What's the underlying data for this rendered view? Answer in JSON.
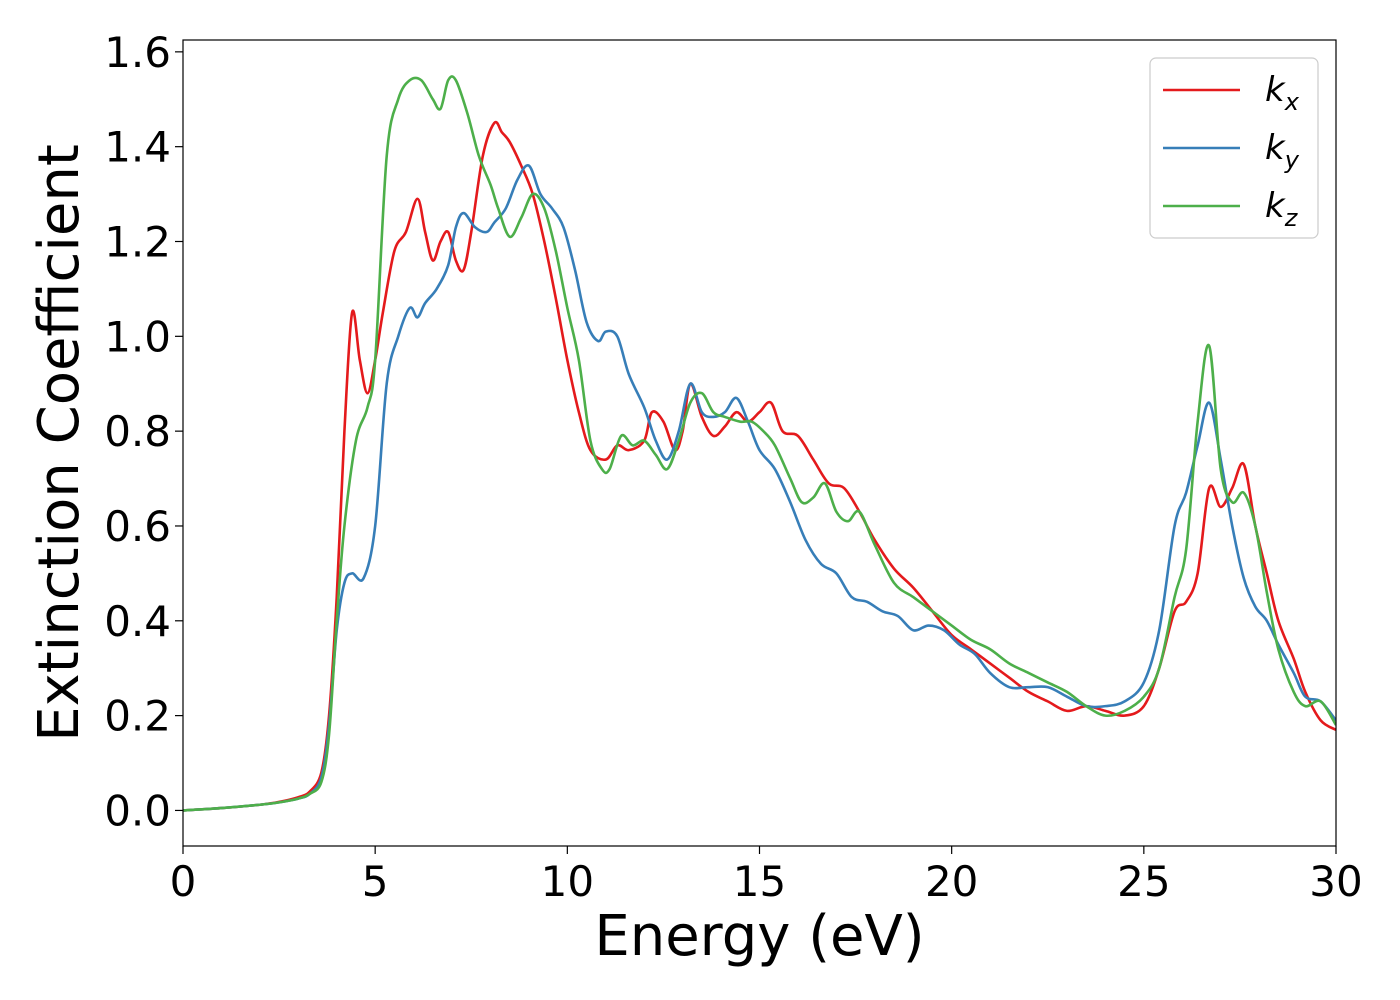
{
  "chart_data": {
    "type": "line",
    "xlabel": "Energy (eV)",
    "ylabel": "Extinction Coefficient",
    "xlim": [
      0,
      30
    ],
    "ylim": [
      -0.075,
      1.625
    ],
    "x_ticks": [
      "0",
      "5",
      "10",
      "15",
      "20",
      "25",
      "30"
    ],
    "y_ticks": [
      "0.0",
      "0.2",
      "0.4",
      "0.6",
      "0.8",
      "1.0",
      "1.2",
      "1.4",
      "1.6"
    ],
    "grid": false,
    "legend_position": "top-right",
    "series": [
      {
        "name": "kx",
        "legend_base": "k",
        "legend_sub": "x",
        "color": "#e41a1c",
        "x": [
          0,
          1,
          2,
          2.5,
          3,
          3.3,
          3.6,
          3.8,
          4.0,
          4.2,
          4.4,
          4.6,
          4.8,
          5.0,
          5.2,
          5.5,
          5.8,
          6.1,
          6.3,
          6.5,
          6.7,
          6.9,
          7.1,
          7.3,
          7.5,
          7.8,
          8.1,
          8.3,
          8.5,
          8.8,
          9.1,
          9.4,
          9.7,
          10.0,
          10.3,
          10.6,
          11.0,
          11.3,
          11.6,
          12.0,
          12.2,
          12.5,
          12.8,
          13.0,
          13.2,
          13.5,
          13.8,
          14.1,
          14.4,
          14.7,
          15.0,
          15.3,
          15.6,
          16.0,
          16.4,
          16.8,
          17.2,
          17.6,
          18.0,
          18.5,
          19.0,
          19.5,
          20.0,
          20.5,
          21.0,
          21.5,
          22.0,
          22.5,
          23.0,
          23.5,
          24.0,
          24.5,
          25.0,
          25.4,
          25.8,
          26.1,
          26.4,
          26.7,
          27.0,
          27.3,
          27.6,
          27.9,
          28.2,
          28.5,
          28.9,
          29.2,
          29.6,
          30.0
        ],
        "y": [
          0.0,
          0.005,
          0.012,
          0.018,
          0.028,
          0.04,
          0.08,
          0.2,
          0.45,
          0.8,
          1.05,
          0.95,
          0.88,
          0.95,
          1.05,
          1.18,
          1.22,
          1.29,
          1.22,
          1.16,
          1.2,
          1.22,
          1.16,
          1.14,
          1.22,
          1.38,
          1.45,
          1.43,
          1.41,
          1.36,
          1.3,
          1.2,
          1.08,
          0.95,
          0.84,
          0.76,
          0.74,
          0.77,
          0.76,
          0.78,
          0.84,
          0.82,
          0.76,
          0.8,
          0.9,
          0.83,
          0.79,
          0.81,
          0.84,
          0.82,
          0.84,
          0.86,
          0.8,
          0.79,
          0.74,
          0.69,
          0.68,
          0.63,
          0.57,
          0.51,
          0.47,
          0.42,
          0.37,
          0.34,
          0.31,
          0.28,
          0.25,
          0.23,
          0.21,
          0.22,
          0.21,
          0.2,
          0.22,
          0.3,
          0.42,
          0.44,
          0.5,
          0.68,
          0.64,
          0.68,
          0.73,
          0.6,
          0.5,
          0.4,
          0.32,
          0.25,
          0.19,
          0.17
        ]
      },
      {
        "name": "ky",
        "legend_base": "k",
        "legend_sub": "y",
        "color": "#377eb8",
        "x": [
          0,
          1,
          2,
          2.5,
          3,
          3.3,
          3.6,
          3.8,
          4.0,
          4.2,
          4.4,
          4.7,
          5.0,
          5.3,
          5.6,
          5.9,
          6.1,
          6.3,
          6.6,
          6.9,
          7.1,
          7.3,
          7.6,
          7.9,
          8.1,
          8.4,
          8.7,
          9.0,
          9.3,
          9.6,
          9.9,
          10.2,
          10.5,
          10.8,
          11.0,
          11.3,
          11.6,
          12.0,
          12.3,
          12.6,
          12.9,
          13.2,
          13.5,
          13.8,
          14.1,
          14.4,
          14.7,
          15.0,
          15.4,
          15.8,
          16.2,
          16.6,
          17.0,
          17.4,
          17.8,
          18.2,
          18.6,
          19.0,
          19.4,
          19.8,
          20.2,
          20.6,
          21.0,
          21.5,
          22.0,
          22.5,
          23.0,
          23.5,
          24.0,
          24.5,
          25.0,
          25.4,
          25.8,
          26.1,
          26.4,
          26.7,
          27.0,
          27.3,
          27.6,
          27.9,
          28.2,
          28.5,
          28.9,
          29.2,
          29.6,
          30.0
        ],
        "y": [
          0.0,
          0.005,
          0.012,
          0.017,
          0.025,
          0.035,
          0.07,
          0.18,
          0.38,
          0.48,
          0.5,
          0.49,
          0.6,
          0.9,
          1.0,
          1.06,
          1.04,
          1.07,
          1.1,
          1.15,
          1.23,
          1.26,
          1.23,
          1.22,
          1.24,
          1.27,
          1.33,
          1.36,
          1.3,
          1.27,
          1.23,
          1.14,
          1.03,
          0.99,
          1.01,
          1.0,
          0.92,
          0.85,
          0.78,
          0.74,
          0.8,
          0.9,
          0.84,
          0.83,
          0.84,
          0.87,
          0.82,
          0.76,
          0.72,
          0.65,
          0.57,
          0.52,
          0.5,
          0.45,
          0.44,
          0.42,
          0.41,
          0.38,
          0.39,
          0.38,
          0.35,
          0.33,
          0.29,
          0.26,
          0.26,
          0.26,
          0.24,
          0.22,
          0.22,
          0.23,
          0.27,
          0.38,
          0.6,
          0.67,
          0.77,
          0.86,
          0.74,
          0.6,
          0.49,
          0.43,
          0.4,
          0.35,
          0.29,
          0.24,
          0.23,
          0.19
        ]
      },
      {
        "name": "kz",
        "legend_base": "k",
        "legend_sub": "z",
        "color": "#4daf4a",
        "x": [
          0,
          1,
          2,
          2.5,
          3,
          3.3,
          3.6,
          3.8,
          4.0,
          4.2,
          4.5,
          4.8,
          5.0,
          5.3,
          5.6,
          5.9,
          6.2,
          6.5,
          6.7,
          6.9,
          7.1,
          7.4,
          7.7,
          8.0,
          8.2,
          8.5,
          8.8,
          9.1,
          9.4,
          9.7,
          10.0,
          10.3,
          10.6,
          10.9,
          11.1,
          11.4,
          11.7,
          12.0,
          12.3,
          12.6,
          12.9,
          13.2,
          13.5,
          13.8,
          14.1,
          14.5,
          14.8,
          15.1,
          15.4,
          15.8,
          16.1,
          16.4,
          16.7,
          17.0,
          17.3,
          17.6,
          18.0,
          18.5,
          19.0,
          19.5,
          20.0,
          20.5,
          21.0,
          21.5,
          22.0,
          22.5,
          23.0,
          23.5,
          24.0,
          24.5,
          25.0,
          25.4,
          25.8,
          26.1,
          26.4,
          26.7,
          27.0,
          27.3,
          27.6,
          27.9,
          28.2,
          28.5,
          28.9,
          29.2,
          29.6,
          30.0
        ],
        "y": [
          0.0,
          0.005,
          0.012,
          0.017,
          0.025,
          0.035,
          0.06,
          0.16,
          0.4,
          0.6,
          0.78,
          0.85,
          0.95,
          1.38,
          1.5,
          1.54,
          1.54,
          1.5,
          1.48,
          1.54,
          1.54,
          1.47,
          1.38,
          1.32,
          1.27,
          1.21,
          1.25,
          1.3,
          1.27,
          1.18,
          1.06,
          0.95,
          0.78,
          0.72,
          0.72,
          0.79,
          0.77,
          0.78,
          0.75,
          0.72,
          0.78,
          0.86,
          0.88,
          0.84,
          0.83,
          0.82,
          0.82,
          0.8,
          0.77,
          0.7,
          0.65,
          0.66,
          0.69,
          0.63,
          0.61,
          0.63,
          0.56,
          0.48,
          0.45,
          0.42,
          0.39,
          0.36,
          0.34,
          0.31,
          0.29,
          0.27,
          0.25,
          0.22,
          0.2,
          0.21,
          0.24,
          0.3,
          0.45,
          0.55,
          0.82,
          0.98,
          0.72,
          0.65,
          0.67,
          0.6,
          0.46,
          0.34,
          0.25,
          0.22,
          0.23,
          0.18
        ]
      }
    ]
  }
}
